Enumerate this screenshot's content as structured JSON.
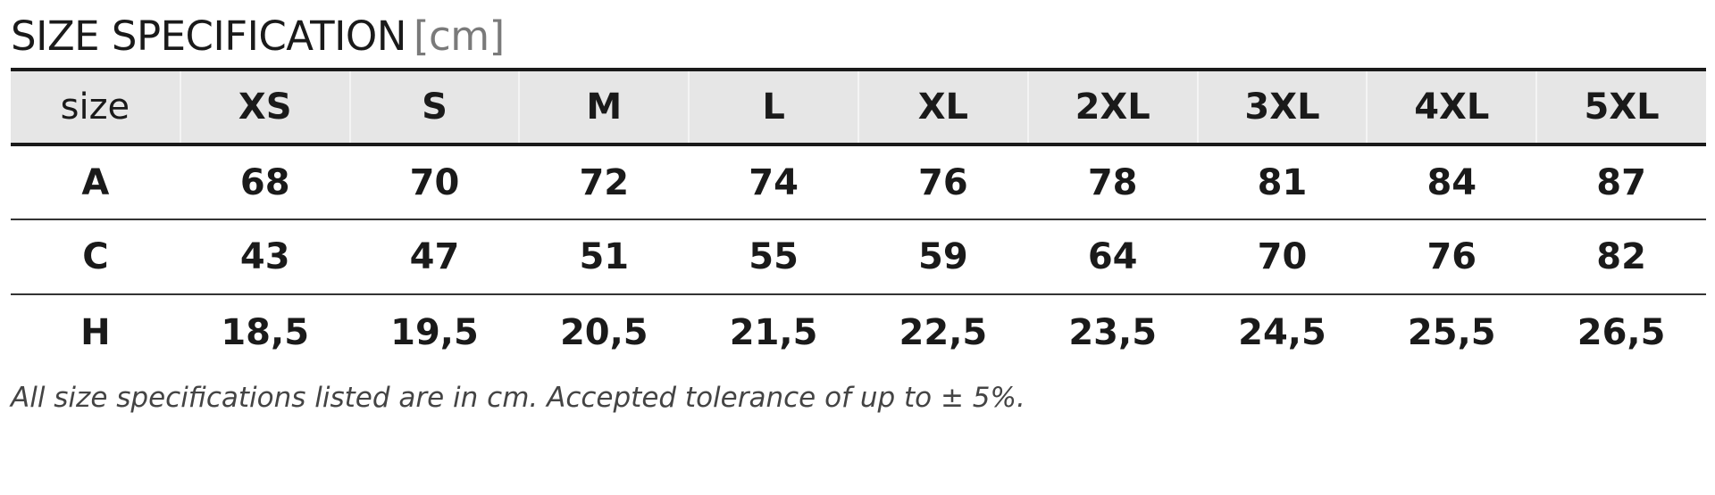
{
  "title": {
    "text": "SIZE SPECIFICATION",
    "unit": "[cm]"
  },
  "table": {
    "header": [
      "size",
      "XS",
      "S",
      "M",
      "L",
      "XL",
      "2XL",
      "3XL",
      "4XL",
      "5XL"
    ],
    "rows": [
      [
        "A",
        "68",
        "70",
        "72",
        "74",
        "76",
        "78",
        "81",
        "84",
        "87"
      ],
      [
        "C",
        "43",
        "47",
        "51",
        "55",
        "59",
        "64",
        "70",
        "76",
        "82"
      ],
      [
        "H",
        "18,5",
        "19,5",
        "20,5",
        "21,5",
        "22,5",
        "23,5",
        "24,5",
        "25,5",
        "26,5"
      ]
    ]
  },
  "footnote": "All size specifications listed are in cm. Accepted tolerance of up to ± 5%."
}
